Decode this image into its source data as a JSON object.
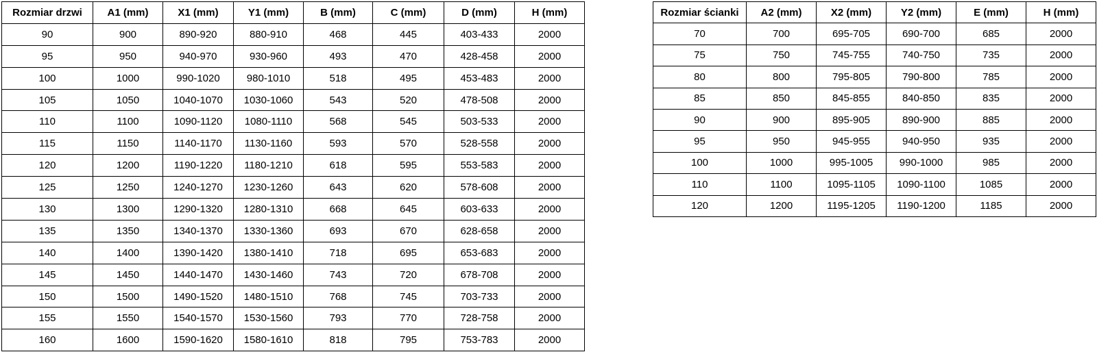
{
  "page": {
    "background_color": "#ffffff",
    "border_color": "#000000",
    "text_color": "#000000"
  },
  "door_table": {
    "headers": [
      "Rozmiar drzwi",
      "A1 (mm)",
      "X1 (mm)",
      "Y1 (mm)",
      "B (mm)",
      "C (mm)",
      "D (mm)",
      "H (mm)"
    ],
    "rows": [
      [
        "90",
        "900",
        "890-920",
        "880-910",
        "468",
        "445",
        "403-433",
        "2000"
      ],
      [
        "95",
        "950",
        "940-970",
        "930-960",
        "493",
        "470",
        "428-458",
        "2000"
      ],
      [
        "100",
        "1000",
        "990-1020",
        "980-1010",
        "518",
        "495",
        "453-483",
        "2000"
      ],
      [
        "105",
        "1050",
        "1040-1070",
        "1030-1060",
        "543",
        "520",
        "478-508",
        "2000"
      ],
      [
        "110",
        "1100",
        "1090-1120",
        "1080-1110",
        "568",
        "545",
        "503-533",
        "2000"
      ],
      [
        "115",
        "1150",
        "1140-1170",
        "1130-1160",
        "593",
        "570",
        "528-558",
        "2000"
      ],
      [
        "120",
        "1200",
        "1190-1220",
        "1180-1210",
        "618",
        "595",
        "553-583",
        "2000"
      ],
      [
        "125",
        "1250",
        "1240-1270",
        "1230-1260",
        "643",
        "620",
        "578-608",
        "2000"
      ],
      [
        "130",
        "1300",
        "1290-1320",
        "1280-1310",
        "668",
        "645",
        "603-633",
        "2000"
      ],
      [
        "135",
        "1350",
        "1340-1370",
        "1330-1360",
        "693",
        "670",
        "628-658",
        "2000"
      ],
      [
        "140",
        "1400",
        "1390-1420",
        "1380-1410",
        "718",
        "695",
        "653-683",
        "2000"
      ],
      [
        "145",
        "1450",
        "1440-1470",
        "1430-1460",
        "743",
        "720",
        "678-708",
        "2000"
      ],
      [
        "150",
        "1500",
        "1490-1520",
        "1480-1510",
        "768",
        "745",
        "703-733",
        "2000"
      ],
      [
        "155",
        "1550",
        "1540-1570",
        "1530-1560",
        "793",
        "770",
        "728-758",
        "2000"
      ],
      [
        "160",
        "1600",
        "1590-1620",
        "1580-1610",
        "818",
        "795",
        "753-783",
        "2000"
      ]
    ]
  },
  "wall_table": {
    "headers": [
      "Rozmiar ścianki",
      "A2 (mm)",
      "X2 (mm)",
      "Y2 (mm)",
      "E (mm)",
      "H (mm)"
    ],
    "rows": [
      [
        "70",
        "700",
        "695-705",
        "690-700",
        "685",
        "2000"
      ],
      [
        "75",
        "750",
        "745-755",
        "740-750",
        "735",
        "2000"
      ],
      [
        "80",
        "800",
        "795-805",
        "790-800",
        "785",
        "2000"
      ],
      [
        "85",
        "850",
        "845-855",
        "840-850",
        "835",
        "2000"
      ],
      [
        "90",
        "900",
        "895-905",
        "890-900",
        "885",
        "2000"
      ],
      [
        "95",
        "950",
        "945-955",
        "940-950",
        "935",
        "2000"
      ],
      [
        "100",
        "1000",
        "995-1005",
        "990-1000",
        "985",
        "2000"
      ],
      [
        "110",
        "1100",
        "1095-1105",
        "1090-1100",
        "1085",
        "2000"
      ],
      [
        "120",
        "1200",
        "1195-1205",
        "1190-1200",
        "1185",
        "2000"
      ]
    ]
  }
}
